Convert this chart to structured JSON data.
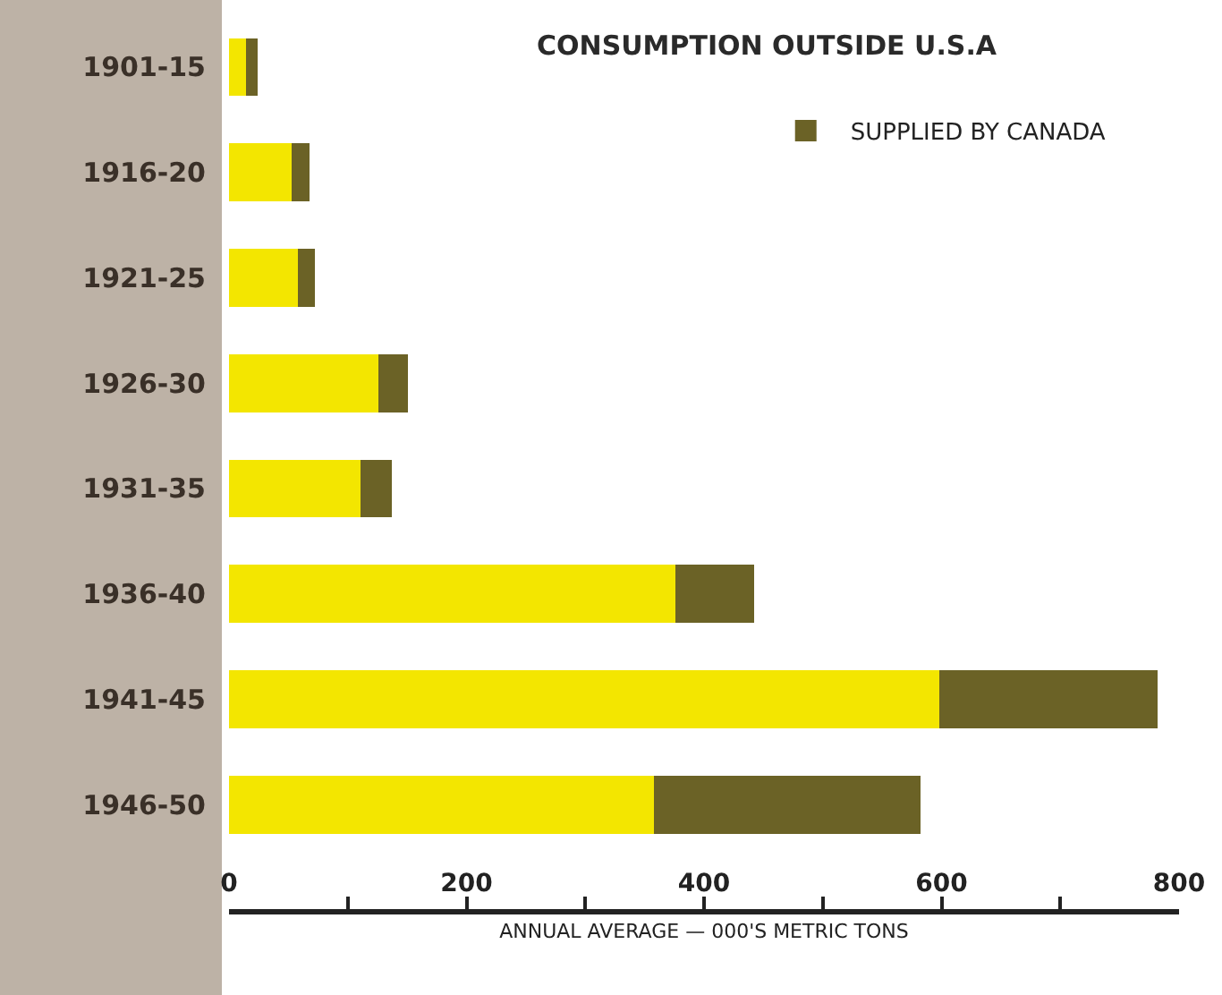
{
  "chart_data": {
    "type": "bar",
    "orientation": "horizontal",
    "stacked": true,
    "title": "CONSUMPTION OUTSIDE U.S.A",
    "xlabel": "ANNUAL AVERAGE — 000'S METRIC TONS",
    "categories": [
      "1901-15",
      "1916-20",
      "1921-25",
      "1926-30",
      "1931-35",
      "1936-40",
      "1941-45",
      "1946-50"
    ],
    "series": [
      {
        "color": "#f3e600",
        "values": [
          14,
          53,
          58,
          126,
          111,
          376,
          598,
          358
        ]
      },
      {
        "name": "SUPPLIED BY CANADA",
        "color": "#6b6226",
        "values": [
          10,
          15,
          14,
          25,
          26,
          66,
          184,
          224
        ]
      }
    ],
    "xlim": [
      0,
      800
    ],
    "xticks": [
      0,
      {
        "value": 100,
        "label": null
      },
      200,
      {
        "value": 300,
        "label": null
      },
      400,
      {
        "value": 500,
        "label": null
      },
      600,
      {
        "value": 700,
        "label": null
      },
      800
    ],
    "grid": false,
    "legend": "top right"
  }
}
